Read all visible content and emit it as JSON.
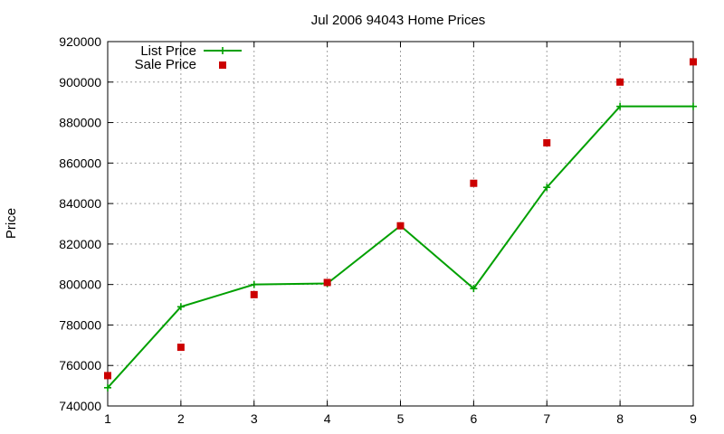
{
  "chart_data": {
    "type": "line",
    "title": "Jul 2006 94043 Home Prices",
    "xlabel": "",
    "ylabel": "Price",
    "xlim": [
      1,
      9
    ],
    "ylim": [
      740000,
      920000
    ],
    "x_ticks": [
      "1",
      "2",
      "3",
      "4",
      "5",
      "6",
      "7",
      "8",
      "9"
    ],
    "y_ticks": [
      "740000",
      "760000",
      "780000",
      "800000",
      "820000",
      "840000",
      "860000",
      "880000",
      "900000",
      "920000"
    ],
    "grid": true,
    "legend_position": "top-left",
    "series": [
      {
        "name": "List Price",
        "style": "line-with-plus-markers",
        "color": "#00a000",
        "x": [
          1,
          2,
          3,
          4,
          5,
          6,
          7,
          8,
          9
        ],
        "y": [
          749000,
          789000,
          800000,
          800500,
          829000,
          798000,
          848000,
          888000,
          888000
        ]
      },
      {
        "name": "Sale Price",
        "style": "square-markers",
        "color": "#cc0000",
        "x": [
          1,
          2,
          3,
          4,
          5,
          6,
          7,
          8,
          9
        ],
        "y": [
          755000,
          769000,
          795000,
          801000,
          829000,
          850000,
          870000,
          900000,
          910000
        ]
      }
    ]
  }
}
